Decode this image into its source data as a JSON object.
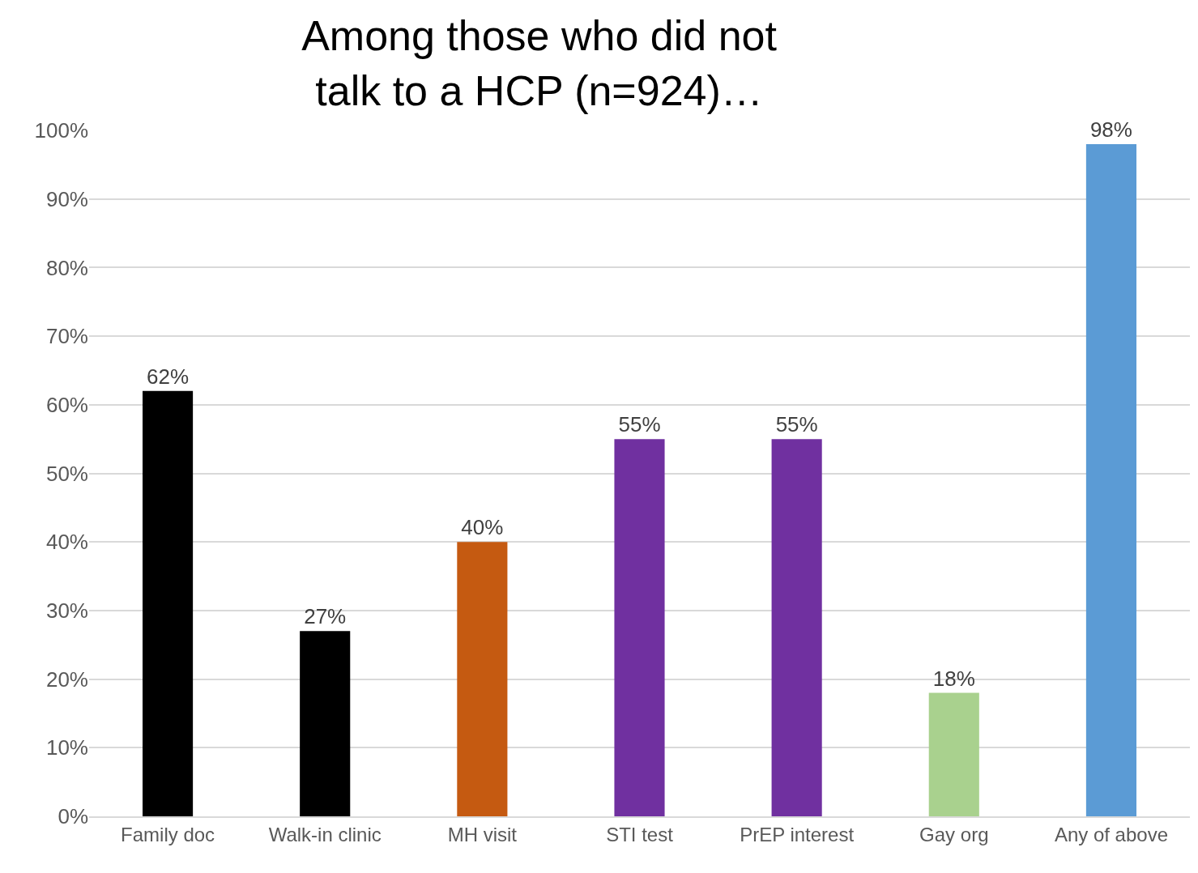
{
  "chart_data": {
    "type": "bar",
    "title": "Among those who did not\ntalk to a HCP (n=924)…",
    "categories": [
      "Family doc",
      "Walk-in clinic",
      "MH visit",
      "STI test",
      "PrEP interest",
      "Gay org",
      "Any of above"
    ],
    "values": [
      62,
      27,
      40,
      55,
      55,
      18,
      98
    ],
    "colors": [
      "#000000",
      "#000000",
      "#c55a11",
      "#7030a0",
      "#7030a0",
      "#a9d18e",
      "#5b9bd5"
    ],
    "value_labels": [
      "62%",
      "27%",
      "40%",
      "55%",
      "55%",
      "18%",
      "98%"
    ],
    "ylim": [
      0,
      100
    ],
    "yticks": [
      {
        "value": 0,
        "label": "0%"
      },
      {
        "value": 10,
        "label": "10%"
      },
      {
        "value": 20,
        "label": "20%"
      },
      {
        "value": 30,
        "label": "30%"
      },
      {
        "value": 40,
        "label": "40%"
      },
      {
        "value": 50,
        "label": "50%"
      },
      {
        "value": 60,
        "label": "60%"
      },
      {
        "value": 70,
        "label": "70%"
      },
      {
        "value": 80,
        "label": "80%"
      },
      {
        "value": 90,
        "label": "90%"
      },
      {
        "value": 100,
        "label": "100%"
      }
    ],
    "grid": "y",
    "legend": false
  }
}
